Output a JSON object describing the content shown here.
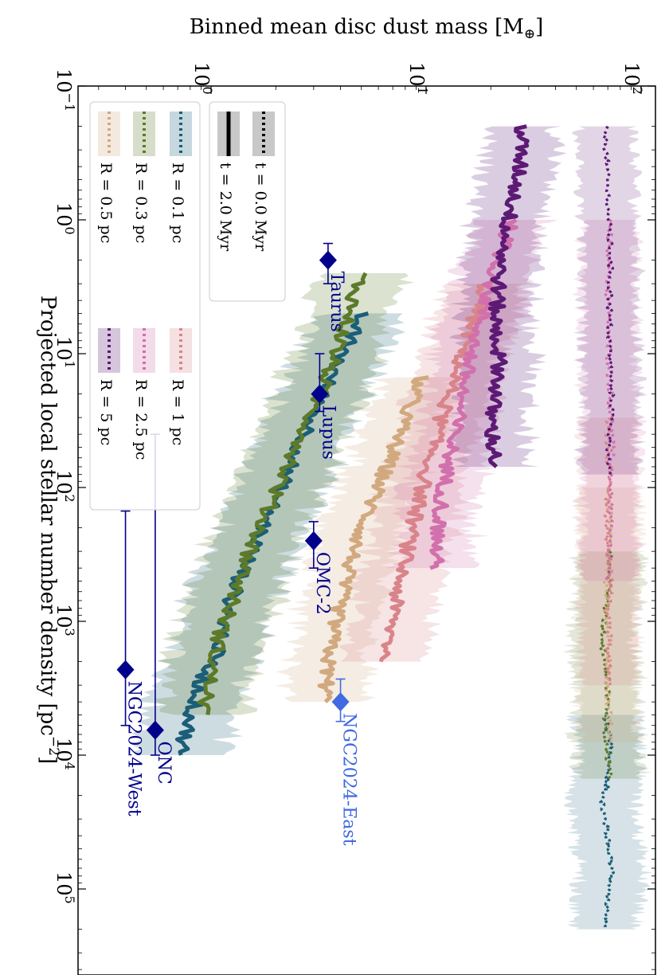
{
  "chart_data": {
    "type": "line",
    "orientation": "rotated-90-clockwise",
    "xlabel": "Projected local stellar number density [pc$^{-2}$]",
    "ylabel": "Binned mean disc dust mass [M$_\\oplus$]",
    "xlabel_text": "Projected local stellar number density [pc",
    "xlabel_exp": "−2",
    "xlabel_end": "]",
    "ylabel_text": "Binned mean disc dust mass [M",
    "ylabel_sub": "⊕",
    "ylabel_end": "]",
    "xscale": "log",
    "yscale": "log",
    "xlim": [
      0.1,
      400000
    ],
    "ylim": [
      0.2,
      110
    ],
    "x_ticks": [
      {
        "value": 0.1,
        "base": "10",
        "exp": "−1"
      },
      {
        "value": 1,
        "base": "10",
        "exp": "0"
      },
      {
        "value": 10,
        "base": "10",
        "exp": "1"
      },
      {
        "value": 100,
        "base": "10",
        "exp": "2"
      },
      {
        "value": 1000,
        "base": "10",
        "exp": "3"
      },
      {
        "value": 10000,
        "base": "10",
        "exp": "4"
      },
      {
        "value": 100000,
        "base": "10",
        "exp": "5"
      }
    ],
    "y_ticks": [
      {
        "value": 1,
        "base": "10",
        "exp": "0"
      },
      {
        "value": 10,
        "base": "10",
        "exp": "1"
      },
      {
        "value": 100,
        "base": "10",
        "exp": "2"
      }
    ],
    "legend": {
      "placement": "top-left",
      "time_entries": [
        {
          "label": "t = 0.0 Myr",
          "style": "dotted",
          "color": "#000000"
        },
        {
          "label": "t = 2.0 Myr",
          "style": "solid",
          "color": "#000000"
        }
      ],
      "radius_entries": [
        {
          "label": "R = 0.1 pc",
          "color": "#1b5e78"
        },
        {
          "label": "R = 0.3 pc",
          "color": "#5c7a2a"
        },
        {
          "label": "R = 0.5 pc",
          "color": "#d2a97e"
        },
        {
          "label": "R = 1 pc",
          "color": "#d9848a"
        },
        {
          "label": "R = 2.5 pc",
          "color": "#d170ac"
        },
        {
          "label": "R = 5 pc",
          "color": "#5d1a75"
        }
      ]
    },
    "series_t0": [
      {
        "name": "R = 0.1 pc",
        "color": "#1b5e78",
        "time": "t = 0.0 Myr",
        "x_range": [
          5000,
          200000
        ],
        "y": [
          68,
          72,
          70,
          66,
          70,
          73,
          70,
          68
        ],
        "band": 0.15
      },
      {
        "name": "R = 0.3 pc",
        "color": "#5c7a2a",
        "time": "t = 0.0 Myr",
        "x_range": [
          300,
          15000
        ],
        "y": [
          72,
          70,
          66,
          70,
          68,
          72
        ],
        "band": 0.15
      },
      {
        "name": "R = 0.5 pc",
        "color": "#d2a97e",
        "time": "t = 0.0 Myr",
        "x_range": [
          100,
          8000
        ],
        "y": [
          70,
          72,
          68,
          71,
          70,
          72
        ],
        "band": 0.14
      },
      {
        "name": "R = 1 pc",
        "color": "#d9848a",
        "time": "t = 0.0 Myr",
        "x_range": [
          30,
          3000
        ],
        "y": [
          70,
          71,
          69,
          72,
          71,
          70
        ],
        "band": 0.13
      },
      {
        "name": "R = 2.5 pc",
        "color": "#d170ac",
        "time": "t = 0.0 Myr",
        "x_range": [
          1,
          500
        ],
        "y": [
          72,
          70,
          71,
          73,
          72,
          70
        ],
        "band": 0.13
      },
      {
        "name": "R = 5 pc",
        "color": "#5d1a75",
        "time": "t = 0.0 Myr",
        "x_range": [
          0.2,
          80
        ],
        "y": [
          68,
          70,
          72,
          71,
          73,
          70
        ],
        "band": 0.13
      }
    ],
    "series_t2": [
      {
        "name": "R = 0.1 pc",
        "color": "#1b5e78",
        "time": "t = 2.0 Myr",
        "x_range": [
          5,
          10000
        ],
        "y": [
          5.0,
          4.2,
          3.4,
          2.9,
          2.4,
          2.0,
          1.7,
          1.4,
          1.2,
          1.1,
          0.9,
          0.8,
          0.72
        ],
        "band": 0.2
      },
      {
        "name": "R = 0.3 pc",
        "color": "#5c7a2a",
        "time": "t = 2.0 Myr",
        "x_range": [
          2.5,
          5000
        ],
        "y": [
          5.0,
          4.4,
          3.8,
          3.2,
          2.7,
          2.2,
          1.8,
          1.5,
          1.3,
          1.1,
          1.0,
          0.92
        ],
        "band": 0.2
      },
      {
        "name": "R = 0.5 pc",
        "color": "#d2a97e",
        "time": "t = 2.0 Myr",
        "x_range": [
          15,
          4000
        ],
        "y": [
          9.5,
          8.0,
          6.8,
          5.7,
          4.8,
          4.2,
          3.8,
          3.5,
          3.4
        ],
        "band": 0.18
      },
      {
        "name": "R = 1 pc",
        "color": "#d9848a",
        "time": "t = 2.0 Myr",
        "x_range": [
          3,
          2000
        ],
        "y": [
          19,
          16,
          13.5,
          11.5,
          10,
          8.8,
          7.8,
          7.0,
          6.5
        ],
        "band": 0.18
      },
      {
        "name": "R = 2.5 pc",
        "color": "#d170ac",
        "time": "t = 2.0 Myr",
        "x_range": [
          1,
          400
        ],
        "y": [
          25,
          21,
          18,
          15.5,
          14,
          12.5,
          11.5,
          11
        ],
        "band": 0.17
      },
      {
        "name": "R = 5 pc",
        "color": "#5d1a75",
        "time": "t = 2.0 Myr",
        "x_range": [
          0.2,
          70
        ],
        "y": [
          28,
          27,
          24,
          22,
          21,
          22,
          20,
          21
        ],
        "band": 0.16
      }
    ],
    "observations": [
      {
        "label": "Taurus",
        "x": 2,
        "x_err": [
          1.5,
          3.0
        ],
        "y": 3.5,
        "color": "#00008b"
      },
      {
        "label": "Lupus",
        "x": 20,
        "x_err": [
          10,
          27
        ],
        "y": 3.2,
        "color": "#00008b"
      },
      {
        "label": "OMC-2",
        "x": 250,
        "x_err": [
          180,
          400
        ],
        "y": 3.0,
        "color": "#00008b"
      },
      {
        "label": "NGC2024-East",
        "x": 4000,
        "x_err": [
          2700,
          5600
        ],
        "y": 4.0,
        "color": "#4169e1"
      },
      {
        "label": "ONC",
        "x": 6500,
        "x_err": [
          40,
          10000
        ],
        "y": 0.55,
        "color": "#00008b"
      },
      {
        "label": "NGC2024-West",
        "x": 2300,
        "x_err": [
          150,
          6000
        ],
        "y": 0.4,
        "color": "#00008b"
      }
    ]
  }
}
